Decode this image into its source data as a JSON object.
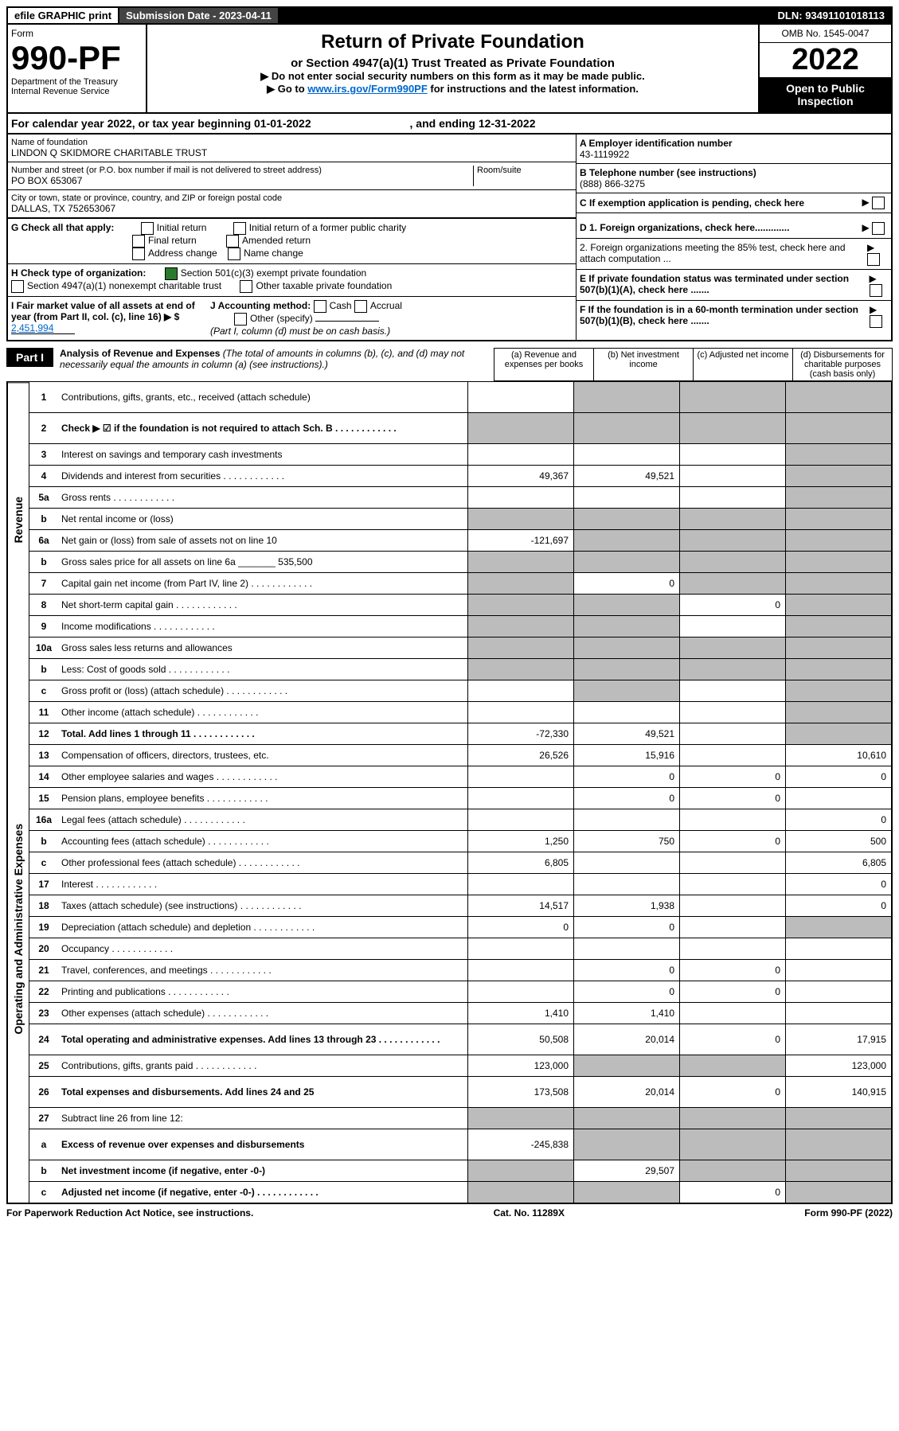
{
  "top": {
    "efile": "efile GRAPHIC print",
    "subdate": "Submission Date - 2023-04-11",
    "dln": "DLN: 93491101018113"
  },
  "header": {
    "form": "Form",
    "form_no": "990-PF",
    "dept1": "Department of the Treasury",
    "dept2": "Internal Revenue Service",
    "title": "Return of Private Foundation",
    "sub1": "or Section 4947(a)(1) Trust Treated as Private Foundation",
    "sub2": "▶ Do not enter social security numbers on this form as it may be made public.",
    "sub3_pre": "▶ Go to ",
    "sub3_link": "www.irs.gov/Form990PF",
    "sub3_post": " for instructions and the latest information.",
    "omb": "OMB No. 1545-0047",
    "year": "2022",
    "open": "Open to Public Inspection"
  },
  "cal": {
    "text_pre": "For calendar year 2022, or tax year beginning ",
    "begin": "01-01-2022",
    "text_mid": " , and ending ",
    "end": "12-31-2022"
  },
  "id": {
    "name_lbl": "Name of foundation",
    "name": "LINDON Q SKIDMORE CHARITABLE TRUST",
    "addr_lbl": "Number and street (or P.O. box number if mail is not delivered to street address)",
    "room_lbl": "Room/suite",
    "addr": "PO BOX 653067",
    "city_lbl": "City or town, state or province, country, and ZIP or foreign postal code",
    "city": "DALLAS, TX  752653067",
    "a_lbl": "A Employer identification number",
    "a_val": "43-1119922",
    "b_lbl": "B Telephone number (see instructions)",
    "b_val": "(888) 866-3275",
    "c_lbl": "C If exemption application is pending, check here",
    "d1": "D 1. Foreign organizations, check here.............",
    "d2": "2. Foreign organizations meeting the 85% test, check here and attach computation ...",
    "e": "E If private foundation status was terminated under section 507(b)(1)(A), check here .......",
    "f": "F If the foundation is in a 60-month termination under section 507(b)(1)(B), check here .......",
    "g_lbl": "G Check all that apply:",
    "g_opts": [
      "Initial return",
      "Final return",
      "Address change",
      "Initial return of a former public charity",
      "Amended return",
      "Name change"
    ],
    "h_lbl": "H Check type of organization:",
    "h1": "Section 501(c)(3) exempt private foundation",
    "h2": "Section 4947(a)(1) nonexempt charitable trust",
    "h3": "Other taxable private foundation",
    "i_lbl": "I Fair market value of all assets at end of year (from Part II, col. (c), line 16) ▶ $",
    "i_val": "2,451,994",
    "j_lbl": "J Accounting method:",
    "j1": "Cash",
    "j2": "Accrual",
    "j3": "Other (specify)",
    "j_note": "(Part I, column (d) must be on cash basis.)"
  },
  "part1": {
    "badge": "Part I",
    "title": "Analysis of Revenue and Expenses",
    "title_note": "(The total of amounts in columns (b), (c), and (d) may not necessarily equal the amounts in column (a) (see instructions).)",
    "col_a": "(a) Revenue and expenses per books",
    "col_b": "(b) Net investment income",
    "col_c": "(c) Adjusted net income",
    "col_d": "(d) Disbursements for charitable purposes (cash basis only)"
  },
  "vside": {
    "rev": "Revenue",
    "exp": "Operating and Administrative Expenses"
  },
  "rows": [
    {
      "n": "1",
      "label": "Contributions, gifts, grants, etc., received (attach schedule)",
      "a": "",
      "b": "g",
      "c": "g",
      "d": "g",
      "tall": true
    },
    {
      "n": "2",
      "label": "Check ▶ ☑ if the foundation is not required to attach Sch. B",
      "a": "g",
      "b": "g",
      "c": "g",
      "d": "g",
      "dots": true,
      "tall": true,
      "bold": true
    },
    {
      "n": "3",
      "label": "Interest on savings and temporary cash investments",
      "a": "",
      "b": "",
      "c": "",
      "d": "g"
    },
    {
      "n": "4",
      "label": "Dividends and interest from securities",
      "a": "49,367",
      "b": "49,521",
      "c": "",
      "d": "g",
      "dots": true
    },
    {
      "n": "5a",
      "label": "Gross rents",
      "a": "",
      "b": "",
      "c": "",
      "d": "g",
      "dots": true
    },
    {
      "n": "b",
      "label": "Net rental income or (loss)",
      "a": "g",
      "b": "g",
      "c": "g",
      "d": "g"
    },
    {
      "n": "6a",
      "label": "Net gain or (loss) from sale of assets not on line 10",
      "a": "-121,697",
      "b": "g",
      "c": "g",
      "d": "g"
    },
    {
      "n": "b",
      "label": "Gross sales price for all assets on line 6a _______ 535,500",
      "a": "g",
      "b": "g",
      "c": "g",
      "d": "g"
    },
    {
      "n": "7",
      "label": "Capital gain net income (from Part IV, line 2)",
      "a": "g",
      "b": "0",
      "c": "g",
      "d": "g",
      "dots": true
    },
    {
      "n": "8",
      "label": "Net short-term capital gain",
      "a": "g",
      "b": "g",
      "c": "0",
      "d": "g",
      "dots": true
    },
    {
      "n": "9",
      "label": "Income modifications",
      "a": "g",
      "b": "g",
      "c": "",
      "d": "g",
      "dots": true
    },
    {
      "n": "10a",
      "label": "Gross sales less returns and allowances",
      "a": "g",
      "b": "g",
      "c": "g",
      "d": "g"
    },
    {
      "n": "b",
      "label": "Less: Cost of goods sold",
      "a": "g",
      "b": "g",
      "c": "g",
      "d": "g",
      "dots": true
    },
    {
      "n": "c",
      "label": "Gross profit or (loss) (attach schedule)",
      "a": "",
      "b": "g",
      "c": "",
      "d": "g",
      "dots": true
    },
    {
      "n": "11",
      "label": "Other income (attach schedule)",
      "a": "",
      "b": "",
      "c": "",
      "d": "g",
      "dots": true
    },
    {
      "n": "12",
      "label": "Total. Add lines 1 through 11",
      "a": "-72,330",
      "b": "49,521",
      "c": "",
      "d": "g",
      "dots": true,
      "bold": true
    },
    {
      "n": "13",
      "label": "Compensation of officers, directors, trustees, etc.",
      "a": "26,526",
      "b": "15,916",
      "c": "",
      "d": "10,610"
    },
    {
      "n": "14",
      "label": "Other employee salaries and wages",
      "a": "",
      "b": "0",
      "c": "0",
      "d": "0",
      "dots": true
    },
    {
      "n": "15",
      "label": "Pension plans, employee benefits",
      "a": "",
      "b": "0",
      "c": "0",
      "d": "",
      "dots": true
    },
    {
      "n": "16a",
      "label": "Legal fees (attach schedule)",
      "a": "",
      "b": "",
      "c": "",
      "d": "0",
      "dots": true
    },
    {
      "n": "b",
      "label": "Accounting fees (attach schedule)",
      "a": "1,250",
      "b": "750",
      "c": "0",
      "d": "500",
      "dots": true
    },
    {
      "n": "c",
      "label": "Other professional fees (attach schedule)",
      "a": "6,805",
      "b": "",
      "c": "",
      "d": "6,805",
      "dots": true
    },
    {
      "n": "17",
      "label": "Interest",
      "a": "",
      "b": "",
      "c": "",
      "d": "0",
      "dots": true
    },
    {
      "n": "18",
      "label": "Taxes (attach schedule) (see instructions)",
      "a": "14,517",
      "b": "1,938",
      "c": "",
      "d": "0",
      "dots": true
    },
    {
      "n": "19",
      "label": "Depreciation (attach schedule) and depletion",
      "a": "0",
      "b": "0",
      "c": "",
      "d": "g",
      "dots": true
    },
    {
      "n": "20",
      "label": "Occupancy",
      "a": "",
      "b": "",
      "c": "",
      "d": "",
      "dots": true
    },
    {
      "n": "21",
      "label": "Travel, conferences, and meetings",
      "a": "",
      "b": "0",
      "c": "0",
      "d": "",
      "dots": true
    },
    {
      "n": "22",
      "label": "Printing and publications",
      "a": "",
      "b": "0",
      "c": "0",
      "d": "",
      "dots": true
    },
    {
      "n": "23",
      "label": "Other expenses (attach schedule)",
      "a": "1,410",
      "b": "1,410",
      "c": "",
      "d": "",
      "dots": true
    },
    {
      "n": "24",
      "label": "Total operating and administrative expenses. Add lines 13 through 23",
      "a": "50,508",
      "b": "20,014",
      "c": "0",
      "d": "17,915",
      "dots": true,
      "bold": true,
      "tall": true
    },
    {
      "n": "25",
      "label": "Contributions, gifts, grants paid",
      "a": "123,000",
      "b": "g",
      "c": "g",
      "d": "123,000",
      "dots": true
    },
    {
      "n": "26",
      "label": "Total expenses and disbursements. Add lines 24 and 25",
      "a": "173,508",
      "b": "20,014",
      "c": "0",
      "d": "140,915",
      "bold": true,
      "tall": true
    },
    {
      "n": "27",
      "label": "Subtract line 26 from line 12:",
      "a": "g",
      "b": "g",
      "c": "g",
      "d": "g"
    },
    {
      "n": "a",
      "label": "Excess of revenue over expenses and disbursements",
      "a": "-245,838",
      "b": "g",
      "c": "g",
      "d": "g",
      "bold": true,
      "tall": true
    },
    {
      "n": "b",
      "label": "Net investment income (if negative, enter -0-)",
      "a": "g",
      "b": "29,507",
      "c": "g",
      "d": "g",
      "bold": true
    },
    {
      "n": "c",
      "label": "Adjusted net income (if negative, enter -0-)",
      "a": "g",
      "b": "g",
      "c": "0",
      "d": "g",
      "dots": true,
      "bold": true
    }
  ],
  "footer": {
    "left": "For Paperwork Reduction Act Notice, see instructions.",
    "mid": "Cat. No. 11289X",
    "right": "Form 990-PF (2022)"
  }
}
